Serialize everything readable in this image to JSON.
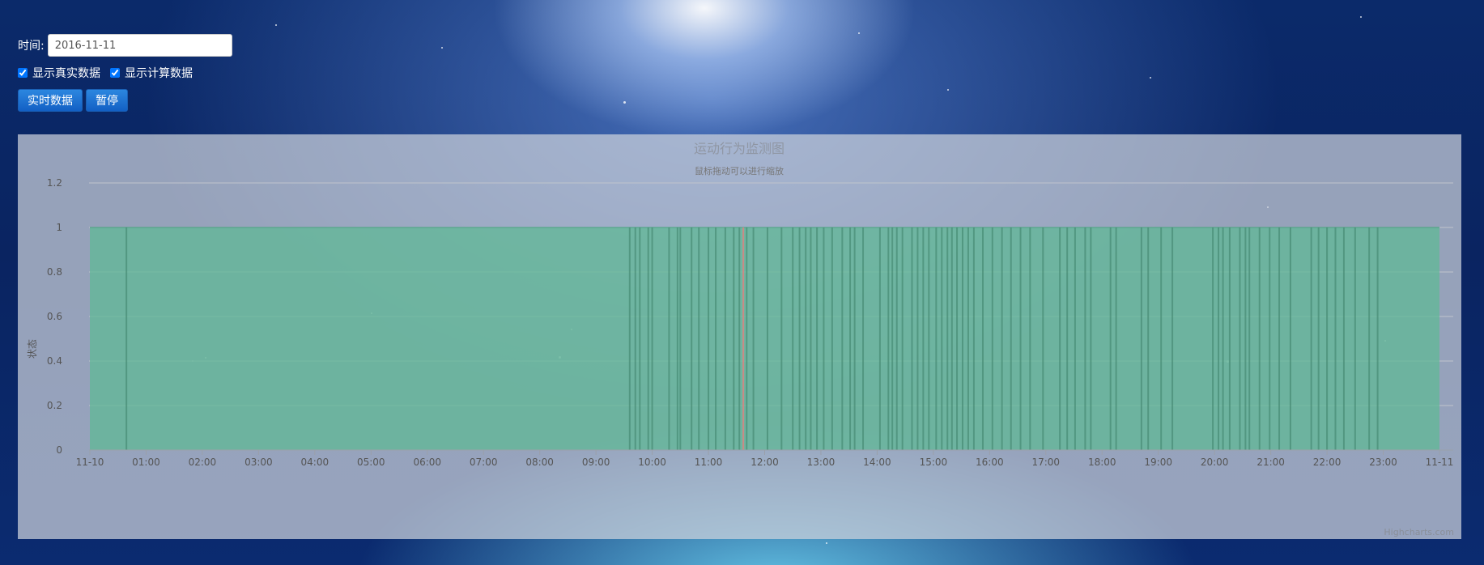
{
  "controls": {
    "date_label": "时间:",
    "date_value": "2016-11-11",
    "checkbox_real": {
      "label": "显示真实数据",
      "checked": true
    },
    "checkbox_calc": {
      "label": "显示计算数据",
      "checked": true
    },
    "button_realtime": "实时数据",
    "button_pause": "暂停"
  },
  "chart_data": {
    "type": "area",
    "title": "运动行为监测图",
    "subtitle": "鼠标拖动可以进行缩放",
    "ylabel": "状态",
    "ylim": [
      0,
      1.2
    ],
    "yticks": [
      0,
      0.2,
      0.4,
      0.6,
      0.8,
      1,
      1.2
    ],
    "xlim_hours": [
      0,
      24
    ],
    "xtick_labels": [
      "11-10",
      "01:00",
      "02:00",
      "03:00",
      "04:00",
      "05:00",
      "06:00",
      "07:00",
      "08:00",
      "09:00",
      "10:00",
      "11:00",
      "12:00",
      "13:00",
      "14:00",
      "15:00",
      "16:00",
      "17:00",
      "18:00",
      "19:00",
      "20:00",
      "21:00",
      "22:00",
      "23:00",
      "11-11"
    ],
    "series": [
      {
        "color": "#5fb896",
        "value": 1,
        "x_range_hours": [
          0.0,
          24.0
        ]
      }
    ],
    "drop_hours": [
      0.65,
      9.6,
      9.7,
      9.78,
      9.93,
      10.0,
      10.3,
      10.45,
      10.5,
      10.7,
      10.83,
      11.0,
      11.13,
      11.3,
      11.45,
      11.55,
      11.68,
      11.8,
      12.05,
      12.3,
      12.5,
      12.62,
      12.73,
      12.82,
      12.93,
      13.05,
      13.2,
      13.38,
      13.52,
      13.6,
      13.75,
      14.05,
      14.2,
      14.27,
      14.35,
      14.45,
      14.62,
      14.72,
      14.82,
      14.92,
      15.05,
      15.15,
      15.25,
      15.33,
      15.42,
      15.52,
      15.62,
      15.72,
      15.88,
      16.05,
      16.22,
      16.38,
      16.55,
      16.72,
      16.95,
      17.25,
      17.38,
      17.52,
      17.7,
      17.8,
      18.15,
      18.25,
      18.7,
      18.82,
      19.05,
      19.25,
      19.97,
      20.07,
      20.15,
      20.27,
      20.45,
      20.55,
      20.62,
      20.8,
      20.98,
      21.15,
      21.35,
      21.72,
      21.85,
      22.0,
      22.15,
      22.3,
      22.5,
      22.75,
      22.9
    ],
    "highlight_hours": [
      11.62
    ],
    "highlight_color": "#e08080",
    "credits": "Highcharts.com"
  }
}
